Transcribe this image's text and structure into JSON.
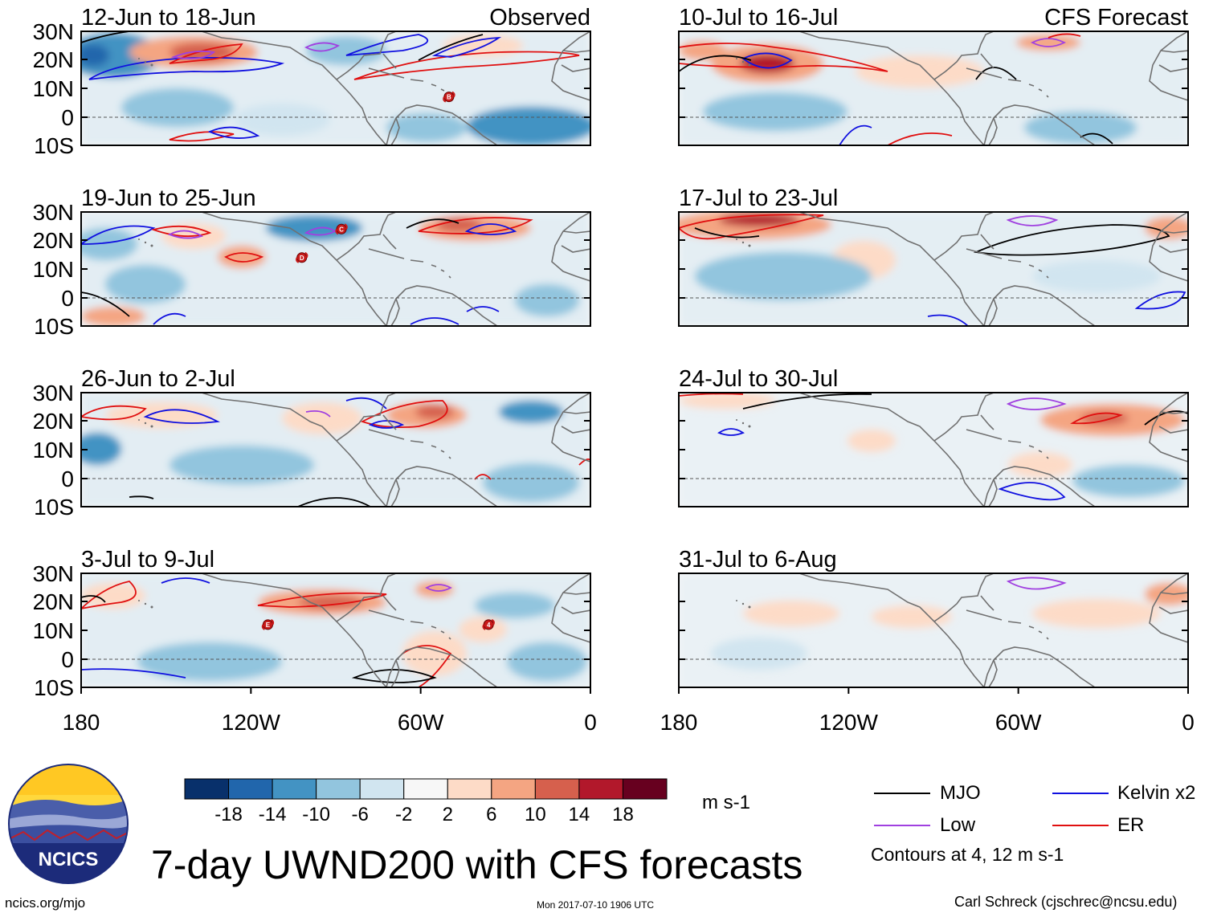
{
  "figure_title": "7-day UWND200 with CFS forecasts",
  "units": "m s-1",
  "contour_note": "Contours at 4, 12 m s-1",
  "source_url": "ncics.org/mjo",
  "timestamp": "Mon 2017-07-10 1906 UTC",
  "author": "Carl Schreck (cjschrec@ncsu.edu)",
  "logo_text": "NCICS",
  "column_headers": {
    "observed": "Observed",
    "forecast": "CFS Forecast"
  },
  "axes": {
    "lat_labels": [
      "30N",
      "20N",
      "10N",
      "0",
      "10S"
    ],
    "lon_labels": [
      "180",
      "120W",
      "60W",
      "0"
    ]
  },
  "colorbar": {
    "ticks": [
      "-18",
      "-14",
      "-10",
      "-6",
      "-2",
      "2",
      "6",
      "10",
      "14",
      "18"
    ],
    "colors": [
      "#08306b",
      "#2166ac",
      "#4393c3",
      "#92c5de",
      "#d1e5f0",
      "#f7f7f7",
      "#fddbc7",
      "#f4a582",
      "#d6604d",
      "#b2182b",
      "#67001f"
    ]
  },
  "legend": [
    {
      "label": "MJO",
      "color": "#000000"
    },
    {
      "label": "Kelvin x2",
      "color": "#1010e0"
    },
    {
      "label": "Low",
      "color": "#a040e0"
    },
    {
      "label": "ER",
      "color": "#e01010"
    }
  ],
  "panels": [
    {
      "title": "12-Jun to 18-Jun",
      "header": "Observed",
      "type": "observed",
      "storms": [
        {
          "letter": "B",
          "lon": -50,
          "lat": 7
        }
      ]
    },
    {
      "title": "19-Jun to 25-Jun",
      "header": "",
      "type": "observed",
      "storms": [
        {
          "letter": "C",
          "lon": -88,
          "lat": 24
        },
        {
          "letter": "D",
          "lon": -102,
          "lat": 14
        }
      ]
    },
    {
      "title": "26-Jun to 2-Jul",
      "header": "",
      "type": "observed",
      "storms": []
    },
    {
      "title": "3-Jul to 9-Jul",
      "header": "",
      "type": "observed",
      "storms": [
        {
          "letter": "E",
          "lon": -114,
          "lat": 12
        },
        {
          "letter": "4",
          "lon": -36,
          "lat": 12
        }
      ]
    },
    {
      "title": "10-Jul to 16-Jul",
      "header": "CFS Forecast",
      "type": "forecast",
      "storms": []
    },
    {
      "title": "17-Jul to 23-Jul",
      "header": "",
      "type": "forecast",
      "storms": []
    },
    {
      "title": "24-Jul to 30-Jul",
      "header": "",
      "type": "forecast",
      "storms": []
    },
    {
      "title": "31-Jul to 6-Aug",
      "header": "",
      "type": "forecast",
      "storms": []
    }
  ]
}
